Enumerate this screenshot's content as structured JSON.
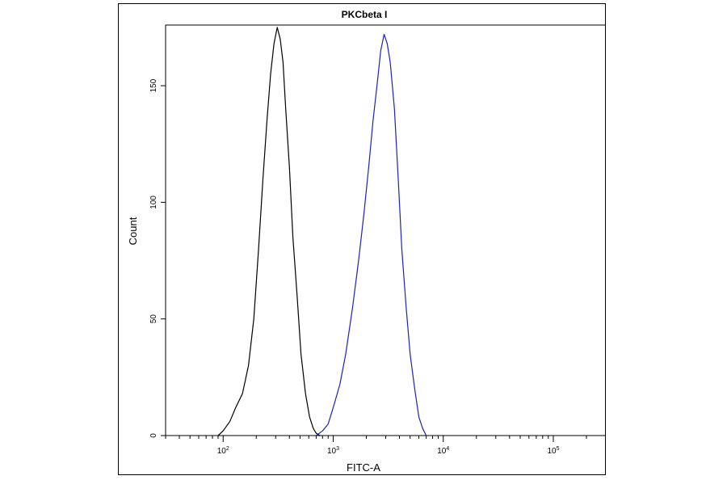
{
  "chart_data": {
    "type": "line",
    "title": "PKCbeta I",
    "xlabel": "FITC-A",
    "ylabel": "Count",
    "x_scale": "log",
    "xlim": [
      30,
      300000
    ],
    "ylim": [
      0,
      176
    ],
    "grid": false,
    "x_ticks": [
      {
        "value": 100,
        "base": "10",
        "exp": "2"
      },
      {
        "value": 1000,
        "base": "10",
        "exp": "3"
      },
      {
        "value": 10000,
        "base": "10",
        "exp": "4"
      },
      {
        "value": 100000,
        "base": "10",
        "exp": "5"
      }
    ],
    "y_ticks": [
      0,
      50,
      100,
      150
    ],
    "series": [
      {
        "color": "#000000",
        "x": [
          90,
          100,
          115,
          130,
          150,
          170,
          190,
          210,
          230,
          250,
          270,
          290,
          310,
          330,
          350,
          370,
          400,
          430,
          470,
          510,
          560,
          610,
          660,
          700,
          760
        ],
        "y": [
          0,
          2,
          6,
          12,
          18,
          30,
          50,
          80,
          110,
          135,
          155,
          168,
          175,
          170,
          160,
          140,
          115,
          85,
          60,
          35,
          18,
          8,
          3,
          1,
          0
        ]
      },
      {
        "color": "#1f22b4",
        "x": [
          700,
          800,
          900,
          1000,
          1150,
          1300,
          1500,
          1700,
          1900,
          2100,
          2300,
          2500,
          2700,
          2900,
          3100,
          3300,
          3600,
          3900,
          4200,
          4600,
          5000,
          5500,
          6000,
          6500,
          7000
        ],
        "y": [
          0,
          2,
          5,
          12,
          22,
          35,
          55,
          75,
          95,
          115,
          135,
          150,
          165,
          172,
          168,
          160,
          140,
          110,
          80,
          55,
          35,
          20,
          8,
          3,
          0
        ]
      }
    ]
  }
}
